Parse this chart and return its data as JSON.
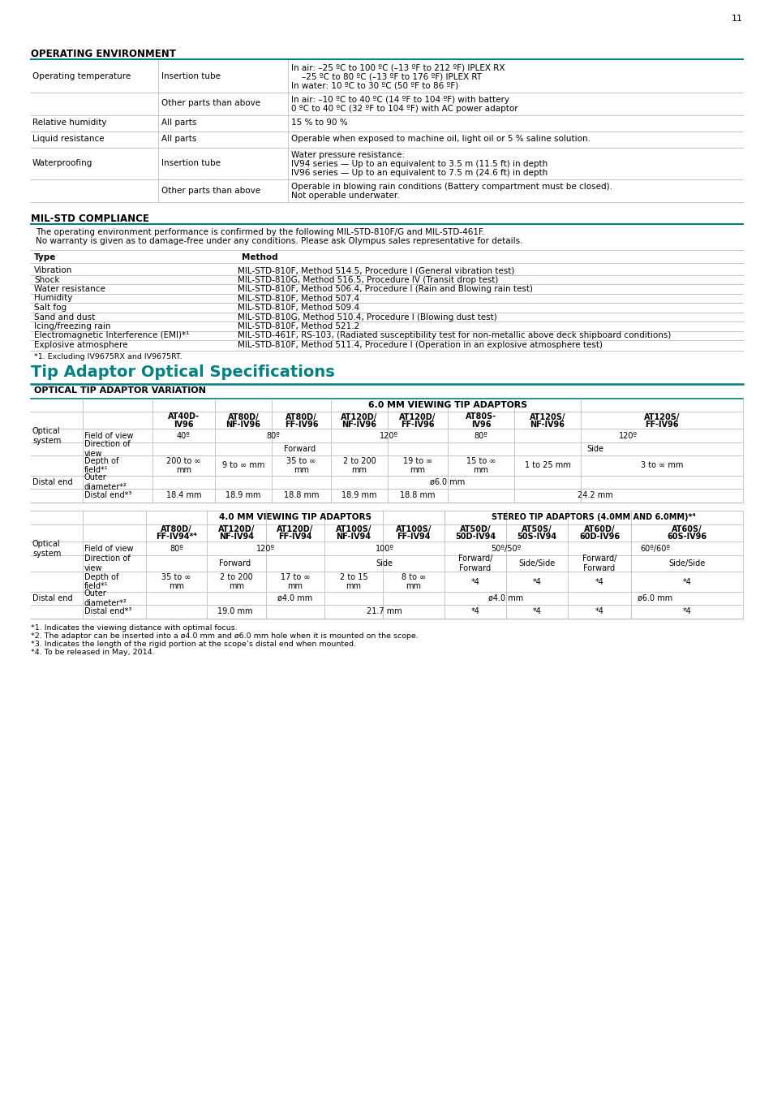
{
  "page_num": "11",
  "bg_color": "#ffffff",
  "teal_color": "#008080",
  "black": "#000000",
  "section1_title": "OPERATING ENVIRONMENT",
  "op_env_rows": [
    {
      "col1": "Operating temperature",
      "col2": "Insertion tube",
      "col3_lines": [
        "In air: –25 ºC to 100 ºC (–13 ºF to 212 ºF) IPLEX RX",
        "    –25 ºC to 80 ºC (–13 ºF to 176 ºF) IPLEX RT",
        "In water: 10 ºC to 30 ºC (50 ºF to 86 ºF)"
      ]
    },
    {
      "col1": "",
      "col2": "Other parts than above",
      "col3_lines": [
        "In air: –10 ºC to 40 ºC (14 ºF to 104 ºF) with battery",
        "0 ºC to 40 ºC (32 ºF to 104 ºF) with AC power adaptor"
      ]
    },
    {
      "col1": "Relative humidity",
      "col2": "All parts",
      "col3_lines": [
        "15 % to 90 %"
      ]
    },
    {
      "col1": "Liquid resistance",
      "col2": "All parts",
      "col3_lines": [
        "Operable when exposed to machine oil, light oil or 5 % saline solution."
      ]
    },
    {
      "col1": "Waterproofing",
      "col2": "Insertion tube",
      "col3_lines": [
        "Water pressure resistance:",
        "IV94 series — Up to an equivalent to 3.5 m (11.5 ft) in depth",
        "IV96 series — Up to an equivalent to 7.5 m (24.6 ft) in depth"
      ]
    },
    {
      "col1": "",
      "col2": "Other parts than above",
      "col3_lines": [
        "Operable in blowing rain conditions (Battery compartment must be closed).",
        "Not operable underwater."
      ]
    }
  ],
  "section2_title": "MIL-STD COMPLIANCE",
  "mil_intro_lines": [
    "The operating environment performance is confirmed by the following MIL-STD-810F/G and MIL-STD-461F.",
    "No warranty is given as to damage-free under any conditions. Please ask Olympus sales representative for details."
  ],
  "mil_rows": [
    {
      "type": "Vibration",
      "method": "MIL-STD-810F, Method 514.5, Procedure I (General vibration test)"
    },
    {
      "type": "Shock",
      "method": "MIL-STD-810G, Method 516.5, Procedure IV (Transit drop test)"
    },
    {
      "type": "Water resistance",
      "method": "MIL-STD-810F, Method 506.4, Procedure I (Rain and Blowing rain test)"
    },
    {
      "type": "Humidity",
      "method": "MIL-STD-810F, Method 507.4"
    },
    {
      "type": "Salt fog",
      "method": "MIL-STD-810F, Method 509.4"
    },
    {
      "type": "Sand and dust",
      "method": "MIL-STD-810G, Method 510.4, Procedure I (Blowing dust test)"
    },
    {
      "type": "Icing/freezing rain",
      "method": "MIL-STD-810F, Method 521.2"
    },
    {
      "type": "Electromagnetic Interference (EMI)*¹",
      "method": "MIL-STD-461F, RS-103, (Radiated susceptibility test for non-metallic above deck shipboard conditions)"
    },
    {
      "type": "Explosive atmosphere",
      "method": "MIL-STD-810F, Method 511.4, Procedure I (Operation in an explosive atmosphere test)"
    }
  ],
  "mil_footnote": "*1. Excluding IV9675RX and IV9675RT.",
  "section3_title": "Tip Adaptor Optical Specifications",
  "section3_sub": "OPTICAL TIP ADAPTOR VARIATION",
  "table1_title": "6.0 MM VIEWING TIP ADAPTORS",
  "table2_title1": "4.0 MM VIEWING TIP ADAPTORS",
  "table2_title2": "STEREO TIP ADAPTORS (4.0MM AND 6.0MM)*⁴",
  "footnotes": [
    "*1. Indicates the viewing distance with optimal focus.",
    "*2. The adaptor can be inserted into a ø4.0 mm and ø6.0 mm hole when it is mounted on the scope.",
    "*3. Indicates the length of the rigid portion at the scope’s distal end when mounted.",
    "*4. To be released in May, 2014."
  ]
}
